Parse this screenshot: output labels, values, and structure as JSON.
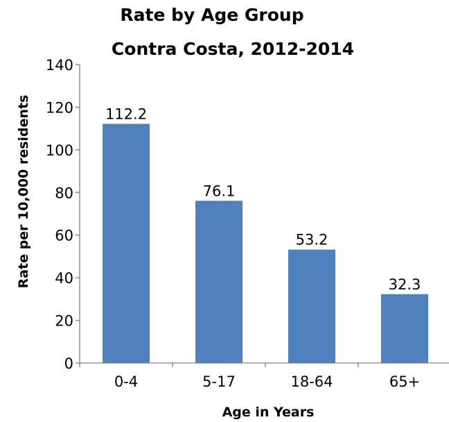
{
  "chart_data": {
    "type": "bar",
    "title_lines": [
      "Rate by Age Group",
      "Contra Costa, 2012-2014"
    ],
    "xlabel": "Age in Years",
    "ylabel": "Rate per 10,000 residents",
    "categories": [
      "0-4",
      "5-17",
      "18-64",
      "65+"
    ],
    "values": [
      112.2,
      76.1,
      53.2,
      32.3
    ],
    "value_labels": [
      "112.2",
      "76.1",
      "53.2",
      "32.3"
    ],
    "ylim": [
      0,
      140
    ],
    "yticks": [
      0,
      20,
      40,
      60,
      80,
      100,
      120,
      140
    ],
    "grid": false,
    "legend": "none",
    "bar_color": "#4f81bd"
  }
}
